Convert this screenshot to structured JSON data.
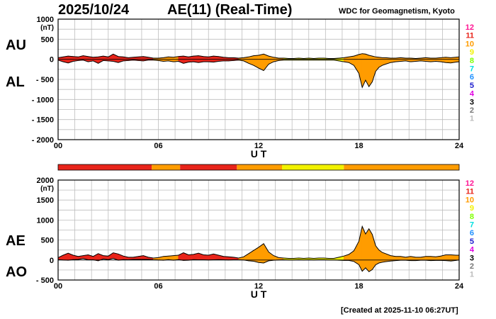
{
  "header": {
    "date": "2025/10/24",
    "title": "AE(11) (Real-Time)",
    "source": "WDC for Geomagnetism, Kyoto"
  },
  "footer": {
    "created": "[Created at 2025-11-10 06:27UT]"
  },
  "legend": {
    "levels": [
      {
        "label": "12",
        "color": "#ff1493"
      },
      {
        "label": "11",
        "color": "#e8241a"
      },
      {
        "label": "10",
        "color": "#ff9c00"
      },
      {
        "label": "9",
        "color": "#f2f200"
      },
      {
        "label": "8",
        "color": "#7fff00"
      },
      {
        "label": "7",
        "color": "#00e0e0"
      },
      {
        "label": "6",
        "color": "#1e90ff"
      },
      {
        "label": "5",
        "color": "#1a1acd"
      },
      {
        "label": "4",
        "color": "#e000e0"
      },
      {
        "label": "3",
        "color": "#000000"
      },
      {
        "label": "2",
        "color": "#777777"
      },
      {
        "label": "1",
        "color": "#bbbbbb"
      }
    ]
  },
  "chart_data": [
    {
      "type": "area",
      "title": "AU / AL",
      "series_labels": [
        "AU",
        "AL"
      ],
      "xlabel": "U T",
      "ylabel": "(nT)",
      "xlim": [
        0,
        24
      ],
      "ylim": [
        -2000,
        1000
      ],
      "xticks": [
        "00",
        "06",
        "12",
        "18",
        "24"
      ],
      "yticks": [
        {
          "v": 1000,
          "label": "1000"
        },
        {
          "v": 500,
          "label": "500"
        },
        {
          "v": 0,
          "label": "0"
        },
        {
          "v": -500,
          "label": "- 500"
        },
        {
          "v": -1000,
          "label": "- 1000"
        },
        {
          "v": -1500,
          "label": "- 1500"
        },
        {
          "v": -2000,
          "label": "- 2000"
        }
      ],
      "x": [
        0,
        0.3,
        0.6,
        0.9,
        1.2,
        1.5,
        1.8,
        2.1,
        2.4,
        2.7,
        3.0,
        3.3,
        3.6,
        3.9,
        4.2,
        4.5,
        4.8,
        5.1,
        5.4,
        5.7,
        6.0,
        6.3,
        6.6,
        6.9,
        7.2,
        7.5,
        7.8,
        8.1,
        8.4,
        8.7,
        9.0,
        9.3,
        9.6,
        9.9,
        10.2,
        10.5,
        10.8,
        11.1,
        11.4,
        11.7,
        12.0,
        12.3,
        12.6,
        12.9,
        13.2,
        13.5,
        13.8,
        14.1,
        14.4,
        14.7,
        15.0,
        15.3,
        15.6,
        15.9,
        16.2,
        16.5,
        16.8,
        17.1,
        17.4,
        17.7,
        18.0,
        18.2,
        18.4,
        18.6,
        18.8,
        19.0,
        19.2,
        19.4,
        19.6,
        19.9,
        20.2,
        20.5,
        20.8,
        21.1,
        21.4,
        21.7,
        22.0,
        22.3,
        22.6,
        22.9,
        23.2,
        23.5,
        23.8,
        24.0
      ],
      "au": [
        40,
        60,
        80,
        70,
        60,
        90,
        70,
        50,
        60,
        80,
        60,
        130,
        70,
        60,
        40,
        50,
        60,
        70,
        50,
        30,
        30,
        40,
        60,
        50,
        70,
        80,
        60,
        80,
        90,
        70,
        60,
        80,
        70,
        50,
        40,
        40,
        30,
        40,
        60,
        90,
        100,
        130,
        80,
        50,
        30,
        30,
        20,
        20,
        30,
        20,
        30,
        20,
        30,
        30,
        20,
        20,
        30,
        40,
        60,
        80,
        120,
        140,
        130,
        100,
        80,
        60,
        50,
        40,
        40,
        30,
        30,
        40,
        30,
        30,
        20,
        30,
        40,
        30,
        30,
        40,
        50,
        40,
        50,
        60
      ],
      "al": [
        -20,
        -60,
        -90,
        -50,
        -30,
        -20,
        -60,
        -40,
        -100,
        -30,
        -40,
        -50,
        -80,
        -40,
        -30,
        -20,
        -30,
        -40,
        -20,
        -20,
        -30,
        -50,
        -40,
        -60,
        -50,
        -100,
        -70,
        -60,
        -80,
        -60,
        -60,
        -70,
        -50,
        -40,
        -40,
        -30,
        -20,
        -40,
        -100,
        -150,
        -220,
        -280,
        -120,
        -60,
        -30,
        -20,
        -20,
        -20,
        -20,
        -20,
        -20,
        -20,
        -20,
        -20,
        -20,
        -20,
        -40,
        -60,
        -80,
        -150,
        -350,
        -700,
        -520,
        -680,
        -560,
        -300,
        -200,
        -150,
        -120,
        -80,
        -60,
        -50,
        -40,
        -60,
        -50,
        -40,
        -50,
        -60,
        -50,
        -60,
        -80,
        -90,
        -70,
        -60
      ],
      "activity_bar": [
        {
          "start": 0,
          "end": 5.6,
          "level": "11"
        },
        {
          "start": 5.6,
          "end": 7.3,
          "level": "10"
        },
        {
          "start": 7.3,
          "end": 10.7,
          "level": "11"
        },
        {
          "start": 10.7,
          "end": 13.4,
          "level": "10"
        },
        {
          "start": 13.4,
          "end": 17.1,
          "level": "9"
        },
        {
          "start": 17.1,
          "end": 24,
          "level": "10"
        }
      ]
    },
    {
      "type": "area",
      "title": "AE / AO",
      "series_labels": [
        "AE",
        "AO"
      ],
      "xlabel": "U T",
      "ylabel": "(nT)",
      "xlim": [
        0,
        24
      ],
      "ylim": [
        -500,
        2000
      ],
      "xticks": [
        "00",
        "06",
        "12",
        "18",
        "24"
      ],
      "yticks": [
        {
          "v": 2000,
          "label": "2000"
        },
        {
          "v": 1500,
          "label": "1500"
        },
        {
          "v": 1000,
          "label": "1000"
        },
        {
          "v": 500,
          "label": "500"
        },
        {
          "v": 0,
          "label": "0"
        },
        {
          "v": -500,
          "label": "- 500"
        }
      ],
      "x": [
        0,
        0.3,
        0.6,
        0.9,
        1.2,
        1.5,
        1.8,
        2.1,
        2.4,
        2.7,
        3.0,
        3.3,
        3.6,
        3.9,
        4.2,
        4.5,
        4.8,
        5.1,
        5.4,
        5.7,
        6.0,
        6.3,
        6.6,
        6.9,
        7.2,
        7.5,
        7.8,
        8.1,
        8.4,
        8.7,
        9.0,
        9.3,
        9.6,
        9.9,
        10.2,
        10.5,
        10.8,
        11.1,
        11.4,
        11.7,
        12.0,
        12.3,
        12.6,
        12.9,
        13.2,
        13.5,
        13.8,
        14.1,
        14.4,
        14.7,
        15.0,
        15.3,
        15.6,
        15.9,
        16.2,
        16.5,
        16.8,
        17.1,
        17.4,
        17.7,
        18.0,
        18.2,
        18.4,
        18.6,
        18.8,
        19.0,
        19.2,
        19.4,
        19.6,
        19.9,
        20.2,
        20.5,
        20.8,
        21.1,
        21.4,
        21.7,
        22.0,
        22.3,
        22.6,
        22.9,
        23.2,
        23.5,
        23.8,
        24.0
      ],
      "ae": [
        60,
        120,
        170,
        120,
        90,
        110,
        130,
        90,
        160,
        110,
        100,
        180,
        150,
        100,
        70,
        70,
        90,
        110,
        70,
        50,
        60,
        90,
        100,
        110,
        120,
        180,
        130,
        140,
        170,
        130,
        120,
        150,
        120,
        90,
        80,
        70,
        50,
        80,
        160,
        240,
        320,
        410,
        200,
        110,
        60,
        50,
        40,
        40,
        50,
        40,
        50,
        40,
        50,
        50,
        40,
        40,
        70,
        100,
        140,
        230,
        470,
        840,
        650,
        780,
        640,
        360,
        250,
        190,
        160,
        110,
        90,
        90,
        70,
        90,
        70,
        70,
        90,
        90,
        80,
        100,
        130,
        130,
        120,
        120
      ],
      "ao": [
        10,
        0,
        -5,
        10,
        15,
        35,
        5,
        5,
        -20,
        25,
        10,
        40,
        -5,
        10,
        5,
        15,
        15,
        15,
        15,
        5,
        0,
        -5,
        10,
        -5,
        10,
        -10,
        -5,
        10,
        5,
        5,
        0,
        5,
        10,
        5,
        0,
        5,
        5,
        0,
        -20,
        -30,
        -60,
        -75,
        -20,
        -5,
        0,
        5,
        0,
        0,
        5,
        0,
        5,
        0,
        5,
        5,
        0,
        0,
        -5,
        -10,
        -10,
        -35,
        -115,
        -280,
        -195,
        -290,
        -240,
        -120,
        -75,
        -55,
        -40,
        -25,
        -15,
        -5,
        -5,
        -15,
        -15,
        -5,
        -5,
        -15,
        -10,
        -10,
        -15,
        -25,
        -10,
        0
      ]
    }
  ]
}
